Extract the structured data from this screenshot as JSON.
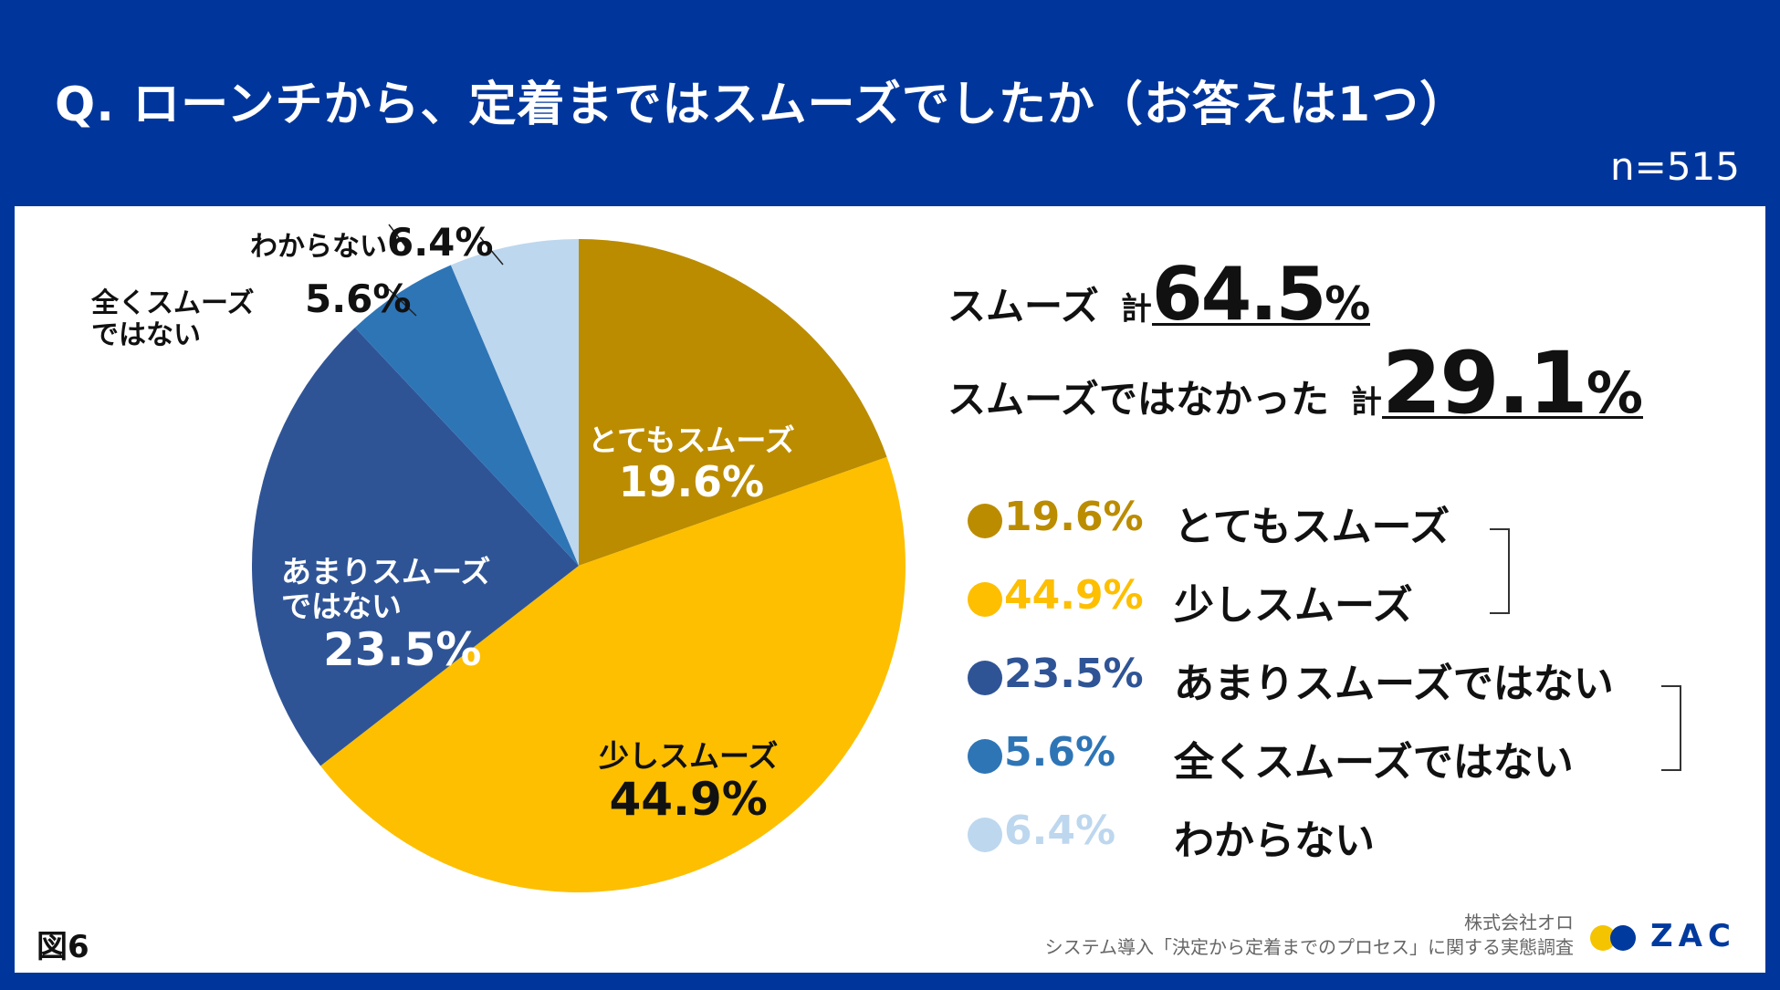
{
  "header": {
    "title": "Q.  ローンチから、定着まではスムーズでしたか（お答えは1つ）",
    "sample": "n=515"
  },
  "chart_data": {
    "type": "pie",
    "categories": [
      "とてもスムーズ",
      "少しスムーズ",
      "あまりスムーズではない",
      "全くスムーズではない",
      "わからない"
    ],
    "values": [
      19.6,
      44.9,
      23.5,
      5.6,
      6.4
    ],
    "colors": [
      "#bb8c00",
      "#fdbf00",
      "#2f5496",
      "#2e75b6",
      "#bdd7ee"
    ],
    "value_suffix": "%",
    "slice_labels": {
      "s0": {
        "name": "とてもスムーズ",
        "pct": "19.6%"
      },
      "s1": {
        "name": "少しスムーズ",
        "pct": "44.9%"
      },
      "s2": {
        "name1": "あまりスムーズ",
        "name2": "ではない",
        "pct": "23.5%"
      },
      "s3": {
        "name1": "全くスムーズ",
        "name2": "ではない",
        "pct": "5.6%"
      },
      "s4": {
        "name": "わからない",
        "pct": "6.4%"
      }
    }
  },
  "summary": {
    "smooth_label": "スムーズ",
    "kei": "計",
    "smooth_value": "64.5",
    "not_smooth_label": "スムーズではなかった",
    "not_smooth_value": "29.1",
    "unit": "%"
  },
  "legend": [
    {
      "pct": "19.6%",
      "name": "とてもスムーズ",
      "color": "#bb8c00"
    },
    {
      "pct": "44.9%",
      "name": "少しスムーズ",
      "color": "#fdbf00"
    },
    {
      "pct": "23.5%",
      "name": "あまりスムーズではない",
      "color": "#2f5496"
    },
    {
      "pct": "5.6%",
      "name": "全くスムーズではない",
      "color": "#2e75b6"
    },
    {
      "pct": "6.4%",
      "name": "わからない",
      "color": "#bdd7ee"
    }
  ],
  "footer": {
    "figure": "図6",
    "company": "株式会社オロ",
    "survey": "システム導入「決定から定着までのプロセス」に関する実態調査",
    "logo_text": "ZAC"
  }
}
